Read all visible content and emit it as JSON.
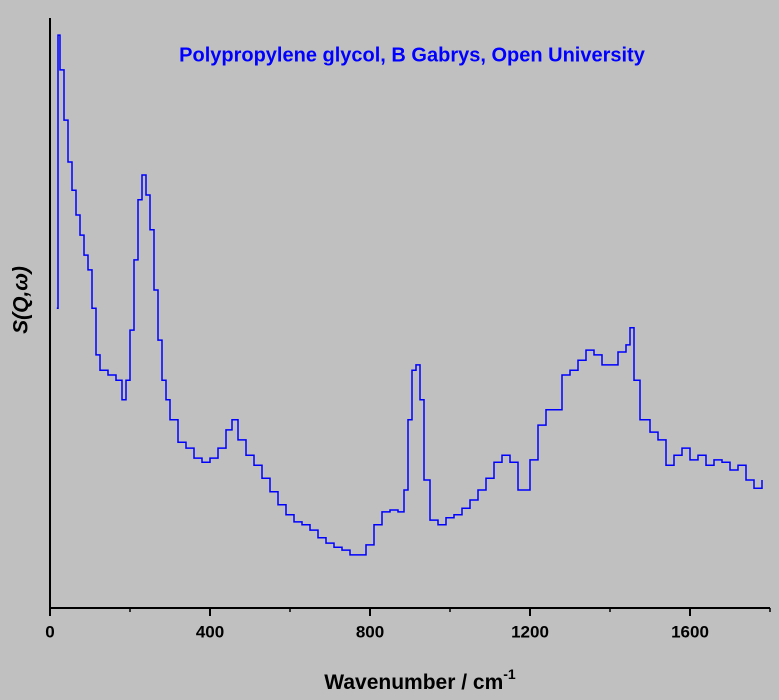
{
  "chart_data": {
    "type": "line",
    "step": true,
    "title": "Polypropylene glycol, B Gabrys, Open University",
    "xlabel": "Wavenumber / cm",
    "xlabel_superscript": "-1",
    "ylabel": "S(Q,ω)",
    "xlim": [
      0,
      1800
    ],
    "xticks": [
      0,
      400,
      800,
      1200,
      1600
    ],
    "xminor_ticks": [
      200,
      600,
      1000,
      1400,
      1800
    ],
    "ylim": [
      0,
      100
    ],
    "series": [
      {
        "color": "#0000ff",
        "x": [
          17,
          20,
          25,
          35,
          45,
          55,
          65,
          75,
          85,
          95,
          105,
          115,
          125,
          145,
          165,
          180,
          190,
          200,
          210,
          220,
          230,
          240,
          250,
          260,
          270,
          280,
          290,
          300,
          320,
          340,
          360,
          380,
          400,
          420,
          440,
          455,
          470,
          490,
          510,
          530,
          550,
          570,
          590,
          610,
          630,
          650,
          670,
          690,
          710,
          730,
          750,
          770,
          790,
          810,
          830,
          850,
          870,
          885,
          895,
          905,
          915,
          925,
          935,
          950,
          970,
          990,
          1010,
          1030,
          1050,
          1070,
          1090,
          1110,
          1130,
          1150,
          1170,
          1185,
          1200,
          1220,
          1240,
          1260,
          1280,
          1300,
          1320,
          1340,
          1360,
          1380,
          1400,
          1420,
          1440,
          1450,
          1460,
          1475,
          1500,
          1520,
          1540,
          1560,
          1580,
          1600,
          1620,
          1640,
          1660,
          1680,
          1700,
          1720,
          1740,
          1760,
          1780
        ],
        "values": [
          50.8,
          97.1,
          91.2,
          82.7,
          75.6,
          70.8,
          66.6,
          63.2,
          59.8,
          57.3,
          50.8,
          42.9,
          40.3,
          39.5,
          38.6,
          35.3,
          38.6,
          47.1,
          59,
          69.2,
          73.4,
          70,
          64.1,
          53.9,
          45.4,
          38.6,
          35.3,
          31.9,
          28.1,
          27.1,
          25.4,
          24.7,
          25.4,
          27.1,
          30.2,
          31.9,
          28.5,
          25.9,
          24.2,
          22,
          19.7,
          17.5,
          15.8,
          14.6,
          14.1,
          13.2,
          11.9,
          11,
          10.3,
          9.8,
          9,
          9,
          10.7,
          14.1,
          16.3,
          16.6,
          16.3,
          20,
          31.9,
          40.3,
          41.2,
          35.3,
          21.7,
          14.9,
          14.1,
          15.3,
          15.8,
          16.9,
          18.3,
          20,
          22,
          24.7,
          25.9,
          24.7,
          20,
          20,
          25.1,
          31,
          33.6,
          33.6,
          39.5,
          40.3,
          42,
          43.7,
          42.9,
          41.2,
          41.2,
          43.4,
          44.6,
          47.5,
          38.6,
          31.9,
          29.8,
          28.5,
          24.2,
          25.9,
          27.1,
          25.1,
          25.9,
          24.2,
          25.1,
          24.7,
          23.4,
          24.2,
          21.7,
          20.3,
          21.7
        ]
      }
    ]
  }
}
